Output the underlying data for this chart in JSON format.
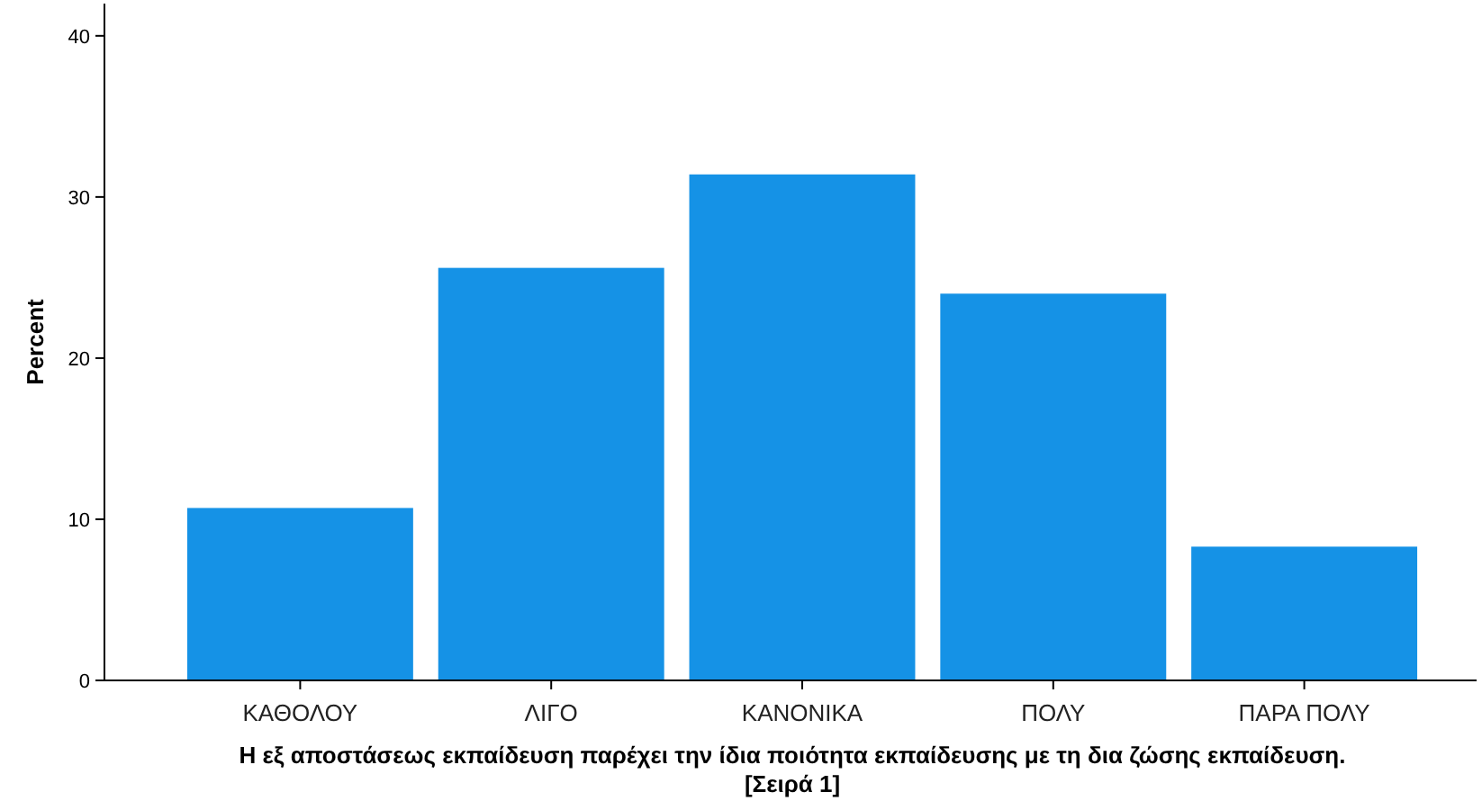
{
  "chart_data": {
    "type": "bar",
    "xlabel": "Η εξ αποστάσεως εκπαίδευση παρέχει την ίδια ποιότητα εκπαίδευσης με τη δια ζώσης εκπαίδευση.\n[Σειρά 1]",
    "ylabel": "Percent",
    "categories": [
      "ΚΑΘΟΛΟΥ",
      "ΛΙΓΟ",
      "ΚΑΝΟΝΙΚΑ",
      "ΠΟΛΥ",
      "ΠΑΡΑ ΠΟΛΥ"
    ],
    "values": [
      10.7,
      25.6,
      31.4,
      24.0,
      8.3
    ],
    "color": "#1592e6",
    "ylim": [
      0,
      42
    ],
    "yticks": [
      0,
      10,
      20,
      30,
      40
    ],
    "grid": false
  }
}
